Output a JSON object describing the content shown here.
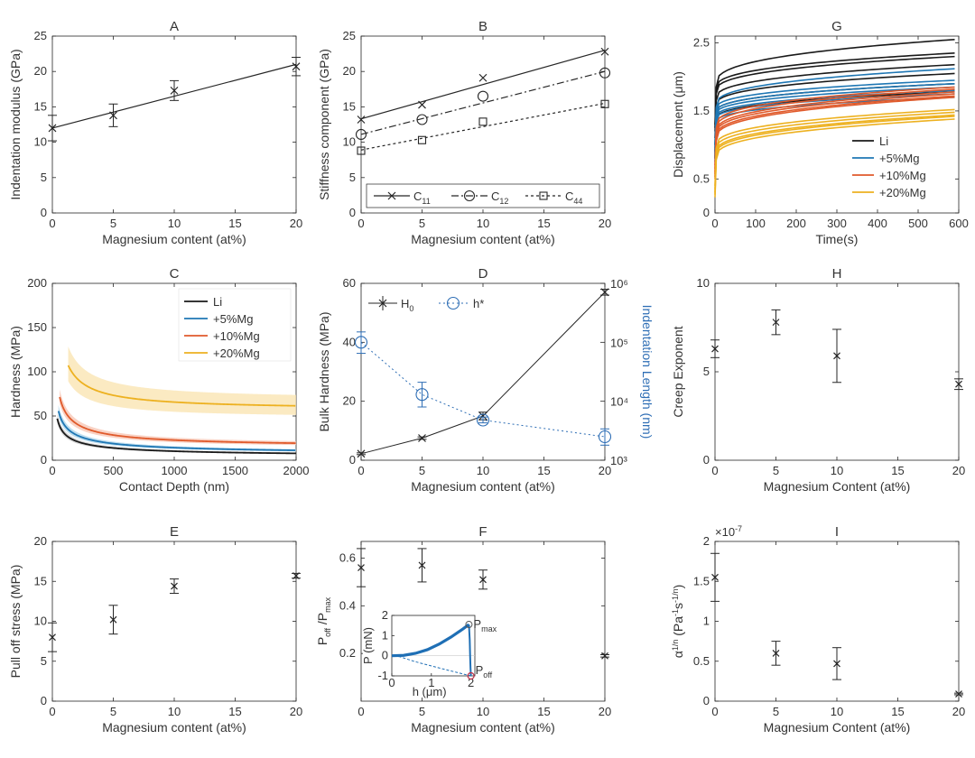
{
  "chart_data": [
    {
      "id": "A",
      "type": "line",
      "title": "A",
      "xlabel": "Magnesium content (at%)",
      "ylabel": "Indentation modulus (GPa)",
      "xlim": [
        0,
        20
      ],
      "ylim": [
        0,
        25
      ],
      "xticks": [
        0,
        5,
        10,
        15,
        20
      ],
      "yticks": [
        0,
        5,
        10,
        15,
        20,
        25
      ],
      "legend": null,
      "series": [
        {
          "name": "Indentation modulus",
          "marker": "x",
          "color": "#262626",
          "x": [
            0,
            5,
            10,
            20
          ],
          "y": [
            12.0,
            13.8,
            17.3,
            20.7
          ],
          "err": [
            1.8,
            1.6,
            1.4,
            1.3
          ]
        },
        {
          "name": "fit",
          "line": "solid",
          "color": "#262626",
          "x": [
            0,
            20
          ],
          "y": [
            12.0,
            21.0
          ]
        }
      ]
    },
    {
      "id": "B",
      "type": "line",
      "title": "B",
      "xlabel": "Magnesium content (at%)",
      "ylabel": "Stiffness component (GPa)",
      "xlim": [
        0,
        20
      ],
      "ylim": [
        0,
        25
      ],
      "xticks": [
        0,
        5,
        10,
        15,
        20
      ],
      "yticks": [
        0,
        5,
        10,
        15,
        20,
        25
      ],
      "legend": "bottom",
      "series": [
        {
          "name": "C",
          "sub": "11",
          "marker": "x",
          "line": "solid",
          "color": "#262626",
          "x": [
            0,
            5,
            10,
            20
          ],
          "y": [
            13.2,
            15.3,
            19.1,
            22.8
          ],
          "fit": [
            13.3,
            23.0
          ]
        },
        {
          "name": "C",
          "sub": "12",
          "marker": "o",
          "line": "dashdot",
          "color": "#262626",
          "x": [
            0,
            5,
            10,
            20
          ],
          "y": [
            11.1,
            13.2,
            16.5,
            19.8
          ],
          "fit": [
            11.1,
            20.0
          ]
        },
        {
          "name": "C",
          "sub": "44",
          "marker": "s",
          "line": "dotted",
          "color": "#262626",
          "x": [
            0,
            5,
            10,
            20
          ],
          "y": [
            8.8,
            10.3,
            12.9,
            15.4
          ],
          "fit": [
            8.9,
            15.5
          ]
        }
      ]
    },
    {
      "id": "G",
      "type": "line",
      "title": "G",
      "xlabel": "Time(s)",
      "ylabel": "Displacement (μm)",
      "xlim": [
        0,
        600
      ],
      "ylim": [
        0,
        2.6
      ],
      "xticks": [
        0,
        100,
        200,
        300,
        400,
        500,
        600
      ],
      "yticks": [
        0,
        0.5,
        1.5,
        2.5
      ],
      "legend": "bottom-right",
      "series": [
        {
          "name": "Li",
          "color": "#1a1a1a",
          "curves": [
            [
              1.85,
              2.55
            ],
            [
              1.8,
              2.35
            ],
            [
              1.75,
              2.3
            ],
            [
              1.65,
              2.18
            ],
            [
              1.55,
              2.05
            ],
            [
              1.45,
              1.9
            ],
            [
              1.35,
              1.78
            ]
          ]
        },
        {
          "name": "+5%Mg",
          "color": "#1f77b4",
          "curves": [
            [
              1.55,
              2.12
            ],
            [
              1.5,
              1.95
            ],
            [
              1.45,
              1.9
            ],
            [
              1.42,
              1.85
            ],
            [
              1.38,
              1.8
            ],
            [
              1.35,
              1.75
            ],
            [
              1.3,
              1.7
            ]
          ]
        },
        {
          "name": "+10%Mg",
          "color": "#e05a2b",
          "curves": [
            [
              1.25,
              1.85
            ],
            [
              1.2,
              1.82
            ],
            [
              1.15,
              1.78
            ],
            [
              1.12,
              1.75
            ],
            [
              1.08,
              1.72
            ],
            [
              1.05,
              1.7
            ]
          ]
        },
        {
          "name": "+20%Mg",
          "color": "#edb120",
          "curves": [
            [
              0.95,
              1.52
            ],
            [
              0.9,
              1.48
            ],
            [
              0.85,
              1.44
            ],
            [
              0.82,
              1.42
            ],
            [
              0.78,
              1.38
            ]
          ]
        }
      ]
    },
    {
      "id": "C",
      "type": "line",
      "title": "C",
      "xlabel": "Contact Depth (nm)",
      "ylabel": "Hardness (MPa)",
      "xlim": [
        0,
        2000
      ],
      "ylim": [
        0,
        200
      ],
      "xticks": [
        0,
        500,
        1000,
        1500,
        2000
      ],
      "yticks": [
        0,
        50,
        100,
        150,
        200
      ],
      "legend": "top-right",
      "series": [
        {
          "name": "Li",
          "color": "#1a1a1a",
          "band": "#c8c8c8",
          "H0": 4,
          "hstar": 5500,
          "xmin": 40
        },
        {
          "name": "+5%Mg",
          "color": "#1f77b4",
          "band": "#a9d3ea",
          "H0": 7,
          "hstar": 3100,
          "xmin": 50
        },
        {
          "name": "+10%Mg",
          "color": "#e05a2b",
          "band": "#f7c3b0",
          "H0": 15,
          "hstar": 1300,
          "xmin": 60
        },
        {
          "name": "+20%Mg",
          "color": "#edb120",
          "band": "#fae3ad",
          "H0": 57,
          "hstar": 330,
          "xmin": 130
        }
      ]
    },
    {
      "id": "D",
      "type": "line",
      "title": "D",
      "xlabel": "Magnesium content (at%)",
      "ylabel": "Bulk Hardness (MPa)",
      "ylabel2": "Indentation Length (nm)",
      "xlim": [
        0,
        20
      ],
      "ylim": [
        0,
        60
      ],
      "y2lim_log": [
        1000,
        1000000
      ],
      "xticks": [
        0,
        5,
        10,
        15,
        20
      ],
      "yticks": [
        0,
        20,
        40,
        60
      ],
      "y2ticks": [
        "10³",
        "10⁴",
        "10⁵",
        "10⁶"
      ],
      "legend": "top",
      "series": [
        {
          "name": "H",
          "sub": "0",
          "marker": "x",
          "line": "solid",
          "color": "#262626",
          "x": [
            0,
            5,
            10,
            20
          ],
          "y": [
            2.2,
            7.5,
            15.0,
            57.0
          ],
          "err": [
            0.3,
            0.4,
            1.3,
            1.0
          ]
        },
        {
          "name": "h*",
          "marker": "o",
          "line": "dotted",
          "color": "#2e6eb5",
          "axis": "right",
          "x": [
            0,
            5,
            10,
            20
          ],
          "y": [
            100000,
            13000,
            4800,
            2500
          ],
          "errLow": [
            65000,
            8000,
            4300,
            1800
          ],
          "errHigh": [
            150000,
            21000,
            5400,
            3400
          ]
        }
      ]
    },
    {
      "id": "H",
      "type": "scatter",
      "title": "H",
      "xlabel": "Magnesium Content (at%)",
      "ylabel": "Creep Exponent",
      "xlim": [
        0,
        20
      ],
      "ylim": [
        0,
        10
      ],
      "xticks": [
        0,
        5,
        10,
        15,
        20
      ],
      "yticks": [
        0,
        5,
        10
      ],
      "legend": null,
      "series": [
        {
          "name": "Creep exponent",
          "marker": "x",
          "color": "#262626",
          "x": [
            0,
            5,
            10,
            20
          ],
          "y": [
            6.3,
            7.8,
            5.9,
            4.3
          ],
          "err": [
            0.5,
            0.7,
            1.5,
            0.3
          ]
        }
      ]
    },
    {
      "id": "E",
      "type": "scatter",
      "title": "E",
      "xlabel": "Magnesium content (at%)",
      "ylabel": "Pull off stress (MPa)",
      "xlim": [
        0,
        20
      ],
      "ylim": [
        0,
        20
      ],
      "xticks": [
        0,
        5,
        10,
        15,
        20
      ],
      "yticks": [
        0,
        5,
        10,
        15,
        20
      ],
      "legend": null,
      "series": [
        {
          "name": "Pull off stress",
          "marker": "x",
          "color": "#262626",
          "x": [
            0,
            5,
            10,
            20
          ],
          "y": [
            8.0,
            10.2,
            14.4,
            15.7
          ],
          "err": [
            1.8,
            1.8,
            0.9,
            0.3
          ]
        }
      ]
    },
    {
      "id": "F",
      "type": "scatter",
      "title": "F",
      "xlabel": "Magnesium content (at%)",
      "ylabel": "P/P ratio",
      "ylabel_main": "P",
      "ylabel_sub1": "off",
      "ylabel_mid": " /P",
      "ylabel_sub2": "max",
      "xlim": [
        0,
        20
      ],
      "ylim": [
        0,
        0.67
      ],
      "xticks": [
        0,
        5,
        10,
        15,
        20
      ],
      "yticks": [
        0.2,
        0.4,
        0.6
      ],
      "yticklabels": [
        "0.2",
        "0.4",
        "0.6"
      ],
      "legend": null,
      "series": [
        {
          "name": "Poff/Pmax",
          "marker": "x",
          "color": "#262626",
          "x": [
            0,
            5,
            10,
            20
          ],
          "y": [
            0.56,
            0.57,
            0.51,
            0.19
          ],
          "err": [
            0.08,
            0.07,
            0.04,
            0.005
          ]
        }
      ],
      "inset": {
        "xlabel": "h (μm)",
        "ylabel": "P (mN)",
        "xlim": [
          0,
          2.1
        ],
        "ylim": [
          -1,
          2
        ],
        "xticks": [
          0,
          1,
          2
        ],
        "yticks": [
          -1,
          0,
          1,
          2
        ],
        "label_max": "P",
        "label_max_sub": "max",
        "label_off": "P",
        "label_off_sub": "off",
        "load_curve": [
          [
            0,
            0
          ],
          [
            0.3,
            0.02
          ],
          [
            0.6,
            0.12
          ],
          [
            0.9,
            0.3
          ],
          [
            1.2,
            0.58
          ],
          [
            1.5,
            0.93
          ],
          [
            1.8,
            1.33
          ],
          [
            1.95,
            1.55
          ]
        ],
        "unload_curve": [
          [
            1.95,
            1.55
          ],
          [
            1.97,
            0.8
          ],
          [
            1.98,
            0
          ],
          [
            1.99,
            -0.6
          ],
          [
            2.0,
            -1.0
          ]
        ],
        "retract_curve": [
          [
            2.0,
            -1.0
          ],
          [
            1.3,
            -0.66
          ],
          [
            0.6,
            -0.3
          ],
          [
            0.2,
            -0.05
          ],
          [
            0.0,
            0.0
          ]
        ],
        "point_max": [
          1.95,
          1.55
        ],
        "point_off": [
          2.0,
          -1.0
        ],
        "colors": {
          "curve": "#1f6fb5",
          "max_marker": "#555555",
          "off_marker": "#c0304a"
        }
      }
    },
    {
      "id": "I",
      "type": "scatter",
      "title": "I",
      "xlabel": "Magnesium Content (at%)",
      "ylabel": "α^(1/n) (Pa^(-1)s^(-1/n))",
      "ylabel_base": "α",
      "ylabel_sup": "1/n",
      "ylabel_unit_a": " (Pa",
      "ylabel_unit_sup1": "-1",
      "ylabel_unit_b": "s",
      "ylabel_unit_sup2": "-1/n",
      "ylabel_unit_c": ")",
      "exponent": "×10",
      "exponent_sup": "-7",
      "xlim": [
        0,
        20
      ],
      "ylim": [
        0,
        2
      ],
      "xticks": [
        0,
        5,
        10,
        15,
        20
      ],
      "yticks": [
        0,
        0.5,
        1,
        1.5,
        2
      ],
      "legend": null,
      "series": [
        {
          "name": "alpha",
          "marker": "x",
          "color": "#262626",
          "x": [
            0,
            5,
            10,
            20
          ],
          "y": [
            1.55,
            0.6,
            0.47,
            0.09
          ],
          "err": [
            0.3,
            0.15,
            0.2,
            0.01
          ]
        }
      ]
    }
  ]
}
